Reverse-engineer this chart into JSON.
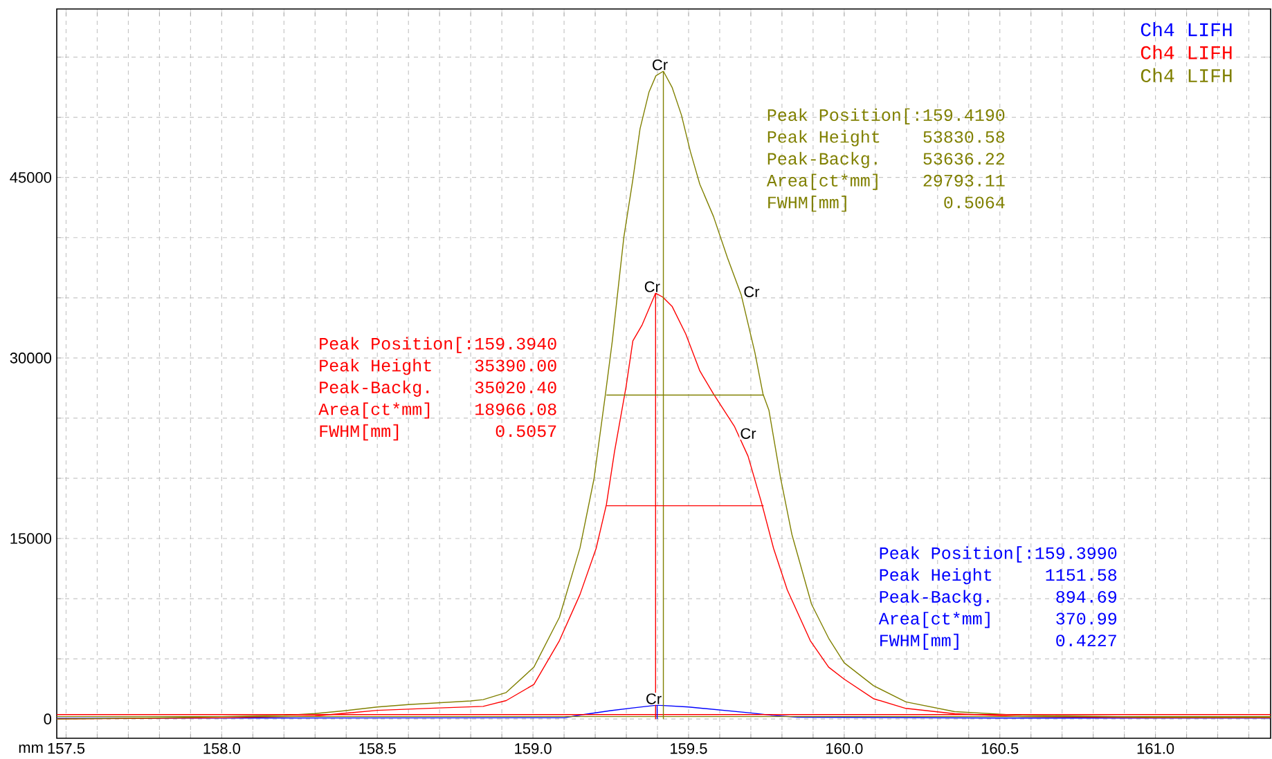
{
  "chart_data": {
    "type": "line",
    "xlabel": "mm",
    "xlim": [
      157.47,
      161.37
    ],
    "ylim": [
      -1600,
      59000
    ],
    "xticks": [
      {
        "value": 157.5,
        "label": "157.5"
      },
      {
        "value": 157.6,
        "label": null
      },
      {
        "value": 157.7,
        "label": null
      },
      {
        "value": 157.8,
        "label": null
      },
      {
        "value": 157.9,
        "label": null
      },
      {
        "value": 158.0,
        "label": "158.0"
      },
      {
        "value": 158.1,
        "label": null
      },
      {
        "value": 158.2,
        "label": null
      },
      {
        "value": 158.3,
        "label": null
      },
      {
        "value": 158.4,
        "label": null
      },
      {
        "value": 158.5,
        "label": "158.5"
      },
      {
        "value": 158.6,
        "label": null
      },
      {
        "value": 158.7,
        "label": null
      },
      {
        "value": 158.8,
        "label": null
      },
      {
        "value": 158.9,
        "label": null
      },
      {
        "value": 159.0,
        "label": "159.0"
      },
      {
        "value": 159.1,
        "label": null
      },
      {
        "value": 159.2,
        "label": null
      },
      {
        "value": 159.3,
        "label": null
      },
      {
        "value": 159.4,
        "label": null
      },
      {
        "value": 159.5,
        "label": "159.5"
      },
      {
        "value": 159.6,
        "label": null
      },
      {
        "value": 159.7,
        "label": null
      },
      {
        "value": 159.8,
        "label": null
      },
      {
        "value": 159.9,
        "label": null
      },
      {
        "value": 160.0,
        "label": "160.0"
      },
      {
        "value": 160.1,
        "label": null
      },
      {
        "value": 160.2,
        "label": null
      },
      {
        "value": 160.3,
        "label": null
      },
      {
        "value": 160.4,
        "label": null
      },
      {
        "value": 160.5,
        "label": "160.5"
      },
      {
        "value": 160.6,
        "label": null
      },
      {
        "value": 160.7,
        "label": null
      },
      {
        "value": 160.8,
        "label": null
      },
      {
        "value": 160.9,
        "label": null
      },
      {
        "value": 161.0,
        "label": "161.0"
      },
      {
        "value": 161.1,
        "label": null
      },
      {
        "value": 161.2,
        "label": null
      },
      {
        "value": 161.3,
        "label": null
      }
    ],
    "yticks": [
      0,
      {
        "value": 5000,
        "label": null
      },
      {
        "value": 10000,
        "label": null
      },
      15000,
      {
        "value": 20000,
        "label": null
      },
      {
        "value": 25000,
        "label": null
      },
      30000,
      {
        "value": 35000,
        "label": null
      },
      {
        "value": 40000,
        "label": null
      },
      45000,
      {
        "value": 50000,
        "label": null
      },
      {
        "value": 55000,
        "label": null
      }
    ],
    "grid": true,
    "legend": "top right",
    "marker": "none",
    "line_style": "solid",
    "series": [
      {
        "name": "Ch4 LIFH",
        "color": "#0000ff",
        "x": [
          157.47,
          158.0,
          159.1,
          159.158,
          159.25,
          159.33,
          159.399,
          159.5,
          159.6,
          159.7,
          159.77,
          159.85,
          160.5,
          161.37
        ],
        "values": [
          50,
          80,
          100,
          350,
          700,
          950,
          1150,
          1000,
          750,
          500,
          300,
          150,
          80,
          80
        ]
      },
      {
        "name": "Ch4 LIFH",
        "color": "#ff0000",
        "x": [
          157.47,
          158.0,
          158.3,
          158.5,
          158.7,
          158.84,
          158.914,
          159.003,
          159.085,
          159.151,
          159.203,
          159.236,
          159.262,
          159.299,
          159.321,
          159.351,
          159.394,
          159.417,
          159.447,
          159.491,
          159.536,
          159.58,
          159.647,
          159.691,
          159.736,
          159.773,
          159.817,
          159.891,
          159.95,
          160.0,
          160.094,
          160.198,
          160.355,
          160.57,
          161.0,
          161.37
        ],
        "values": [
          0,
          100,
          250,
          720,
          920,
          1050,
          1530,
          2870,
          6510,
          10340,
          14180,
          17820,
          22220,
          27590,
          31420,
          32760,
          35390,
          35060,
          34290,
          31990,
          28930,
          27010,
          24330,
          21840,
          17820,
          14180,
          10730,
          6510,
          4310,
          3310,
          1690,
          880,
          440,
          200,
          100,
          100
        ]
      },
      {
        "name": "Ch4 LIFH",
        "color": "#808000",
        "x": [
          157.47,
          157.8,
          158.0,
          158.2,
          158.3,
          158.4,
          158.5,
          158.6,
          158.7,
          158.8,
          158.84,
          158.914,
          159.003,
          159.085,
          159.151,
          159.196,
          159.233,
          159.255,
          159.292,
          159.321,
          159.344,
          159.373,
          159.395,
          159.419,
          159.447,
          159.477,
          159.506,
          159.536,
          159.58,
          159.625,
          159.669,
          159.713,
          159.739,
          159.758,
          159.795,
          159.832,
          159.895,
          159.95,
          160.0,
          160.094,
          160.198,
          160.355,
          160.57,
          161.0,
          161.37
        ],
        "values": [
          0,
          100,
          200,
          300,
          450,
          700,
          1000,
          1200,
          1350,
          1500,
          1610,
          2200,
          4310,
          8450,
          14200,
          19940,
          27010,
          31420,
          40040,
          44830,
          49040,
          52110,
          53450,
          53830,
          52490,
          50190,
          47130,
          44440,
          41760,
          38320,
          35250,
          30460,
          27010,
          25670,
          20110,
          15330,
          9540,
          6710,
          4670,
          2770,
          1420,
          610,
          300,
          150,
          150
        ]
      },
      {
        "color": "#ff0000",
        "x": [
          157.47,
          161.37
        ],
        "values": [
          370,
          370
        ]
      },
      {
        "color": "#808000",
        "x": [
          157.47,
          161.37
        ],
        "values": [
          200,
          200
        ]
      },
      {
        "color": "#0000ff",
        "x": [
          159.399,
          159.399
        ],
        "values": [
          0,
          1150
        ]
      },
      {
        "color": "#ff0000",
        "x": [
          159.394,
          159.394
        ],
        "values": [
          0,
          35390
        ]
      },
      {
        "color": "#808000",
        "x": [
          159.419,
          159.419
        ],
        "values": [
          0,
          53830
        ]
      },
      {
        "color": "#ff0000",
        "x": [
          159.236,
          159.741
        ],
        "values": [
          17720,
          17720
        ]
      },
      {
        "color": "#808000",
        "x": [
          159.236,
          159.741
        ],
        "values": [
          26920,
          26920
        ]
      }
    ],
    "annotations": [
      "Peak Position[",
      ":159.3990",
      "Peak Height",
      "1151.58",
      "Peak-Backg.",
      "894.69",
      "Area[ct*mm]",
      "370.99",
      "FWHM[mm]",
      "0.4227",
      "Peak Position[",
      ":159.3940",
      "Peak Height",
      "35390.00",
      "Peak-Backg.",
      "35020.40",
      "Area[ct*mm]",
      "18966.08",
      "FWHM[mm]",
      "0.5057",
      "Peak Position[",
      ":159.4190",
      "Peak Height",
      "53830.58",
      "Peak-Backg.",
      "53636.22",
      "Area[ct*mm]",
      "29793.11",
      "FWHM[mm]",
      "0.5064",
      {
        "text": "Cr",
        "x": 159.419,
        "y": 53830
      },
      {
        "text": "Cr",
        "x": 159.394,
        "y": 35390
      },
      {
        "text": "Cr",
        "x": 159.399,
        "y": 1150
      },
      {
        "text": "Cr",
        "x": 159.66,
        "y": 35500
      },
      {
        "text": "Cr",
        "x": 159.649,
        "y": 24250
      }
    ]
  }
}
